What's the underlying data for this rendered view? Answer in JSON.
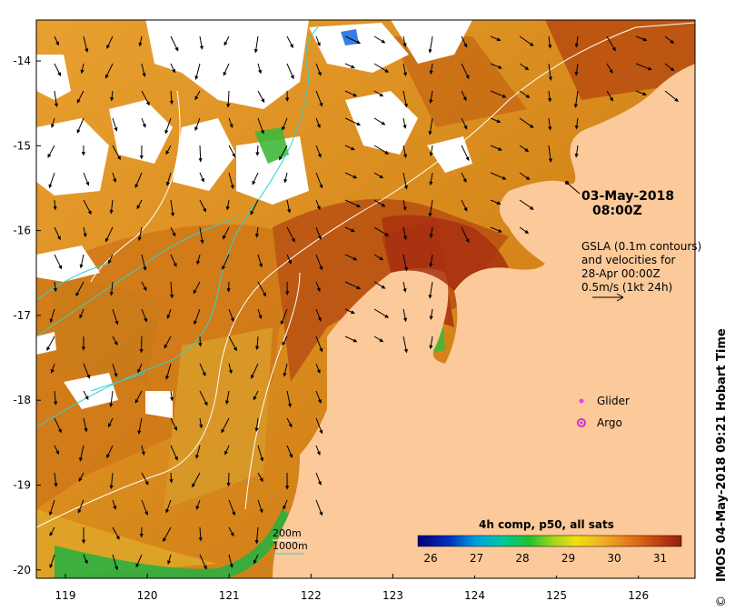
{
  "map": {
    "date_line1": "03-May-2018",
    "date_line2": "08:00Z",
    "gsla_line1": "GSLA (0.1m contours)",
    "gsla_line2": "and velocities for",
    "gsla_line3": "28-Apr 00:00Z",
    "gsla_line4": "0.5m/s (1kt 24h)",
    "legend_glider": "Glider",
    "legend_argo": "Argo",
    "depth_200": "200m",
    "depth_1000": "1000m",
    "colorbar_title": "4h comp, p50, all sats",
    "colorbar_ticks": [
      "26",
      "27",
      "28",
      "29",
      "30",
      "31"
    ],
    "credit": "IMOS 04-May-2018 09:21 Hobart Time",
    "copyright": "©",
    "lat_ticks": [
      "-14",
      "-15",
      "-16",
      "-17",
      "-18",
      "-19",
      "-20"
    ],
    "lon_ticks": [
      "119",
      "120",
      "121",
      "122",
      "123",
      "124",
      "125",
      "126"
    ]
  },
  "colors": {
    "land": "#fcc99a",
    "warm": "#b85a0c",
    "hot": "#a03010",
    "mid": "#d8901c",
    "cool": "#e8b030",
    "isobath_200": "#ffffff",
    "isobath_1000": "#33d1d1",
    "glider": "#e83ee8",
    "argo": "#cc33cc"
  }
}
